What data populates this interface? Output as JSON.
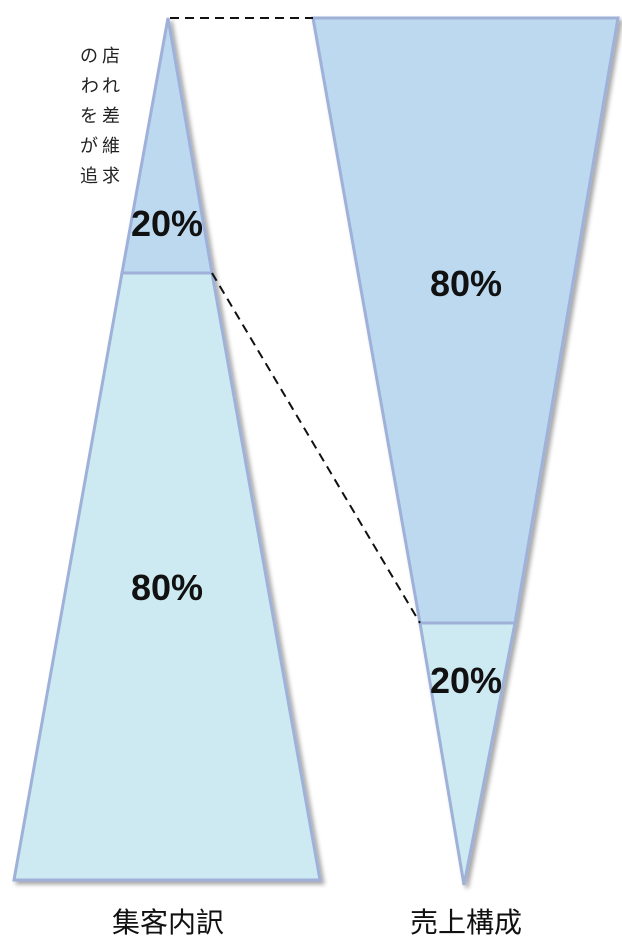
{
  "side_text": [
    "の店",
    "われ",
    "を差",
    "が維",
    "追求"
  ],
  "left_triangle": {
    "caption": "集客内訳",
    "top_segment_label": "20%",
    "bottom_segment_label": "80%"
  },
  "right_triangle": {
    "caption": "売上構成",
    "top_segment_label": "80%",
    "bottom_segment_label": "20%"
  },
  "colors": {
    "segment_dark": "#bcd9f0",
    "segment_light": "#cde9f2",
    "outline": "#9fb1d8",
    "dashed_line": "#111111"
  }
}
